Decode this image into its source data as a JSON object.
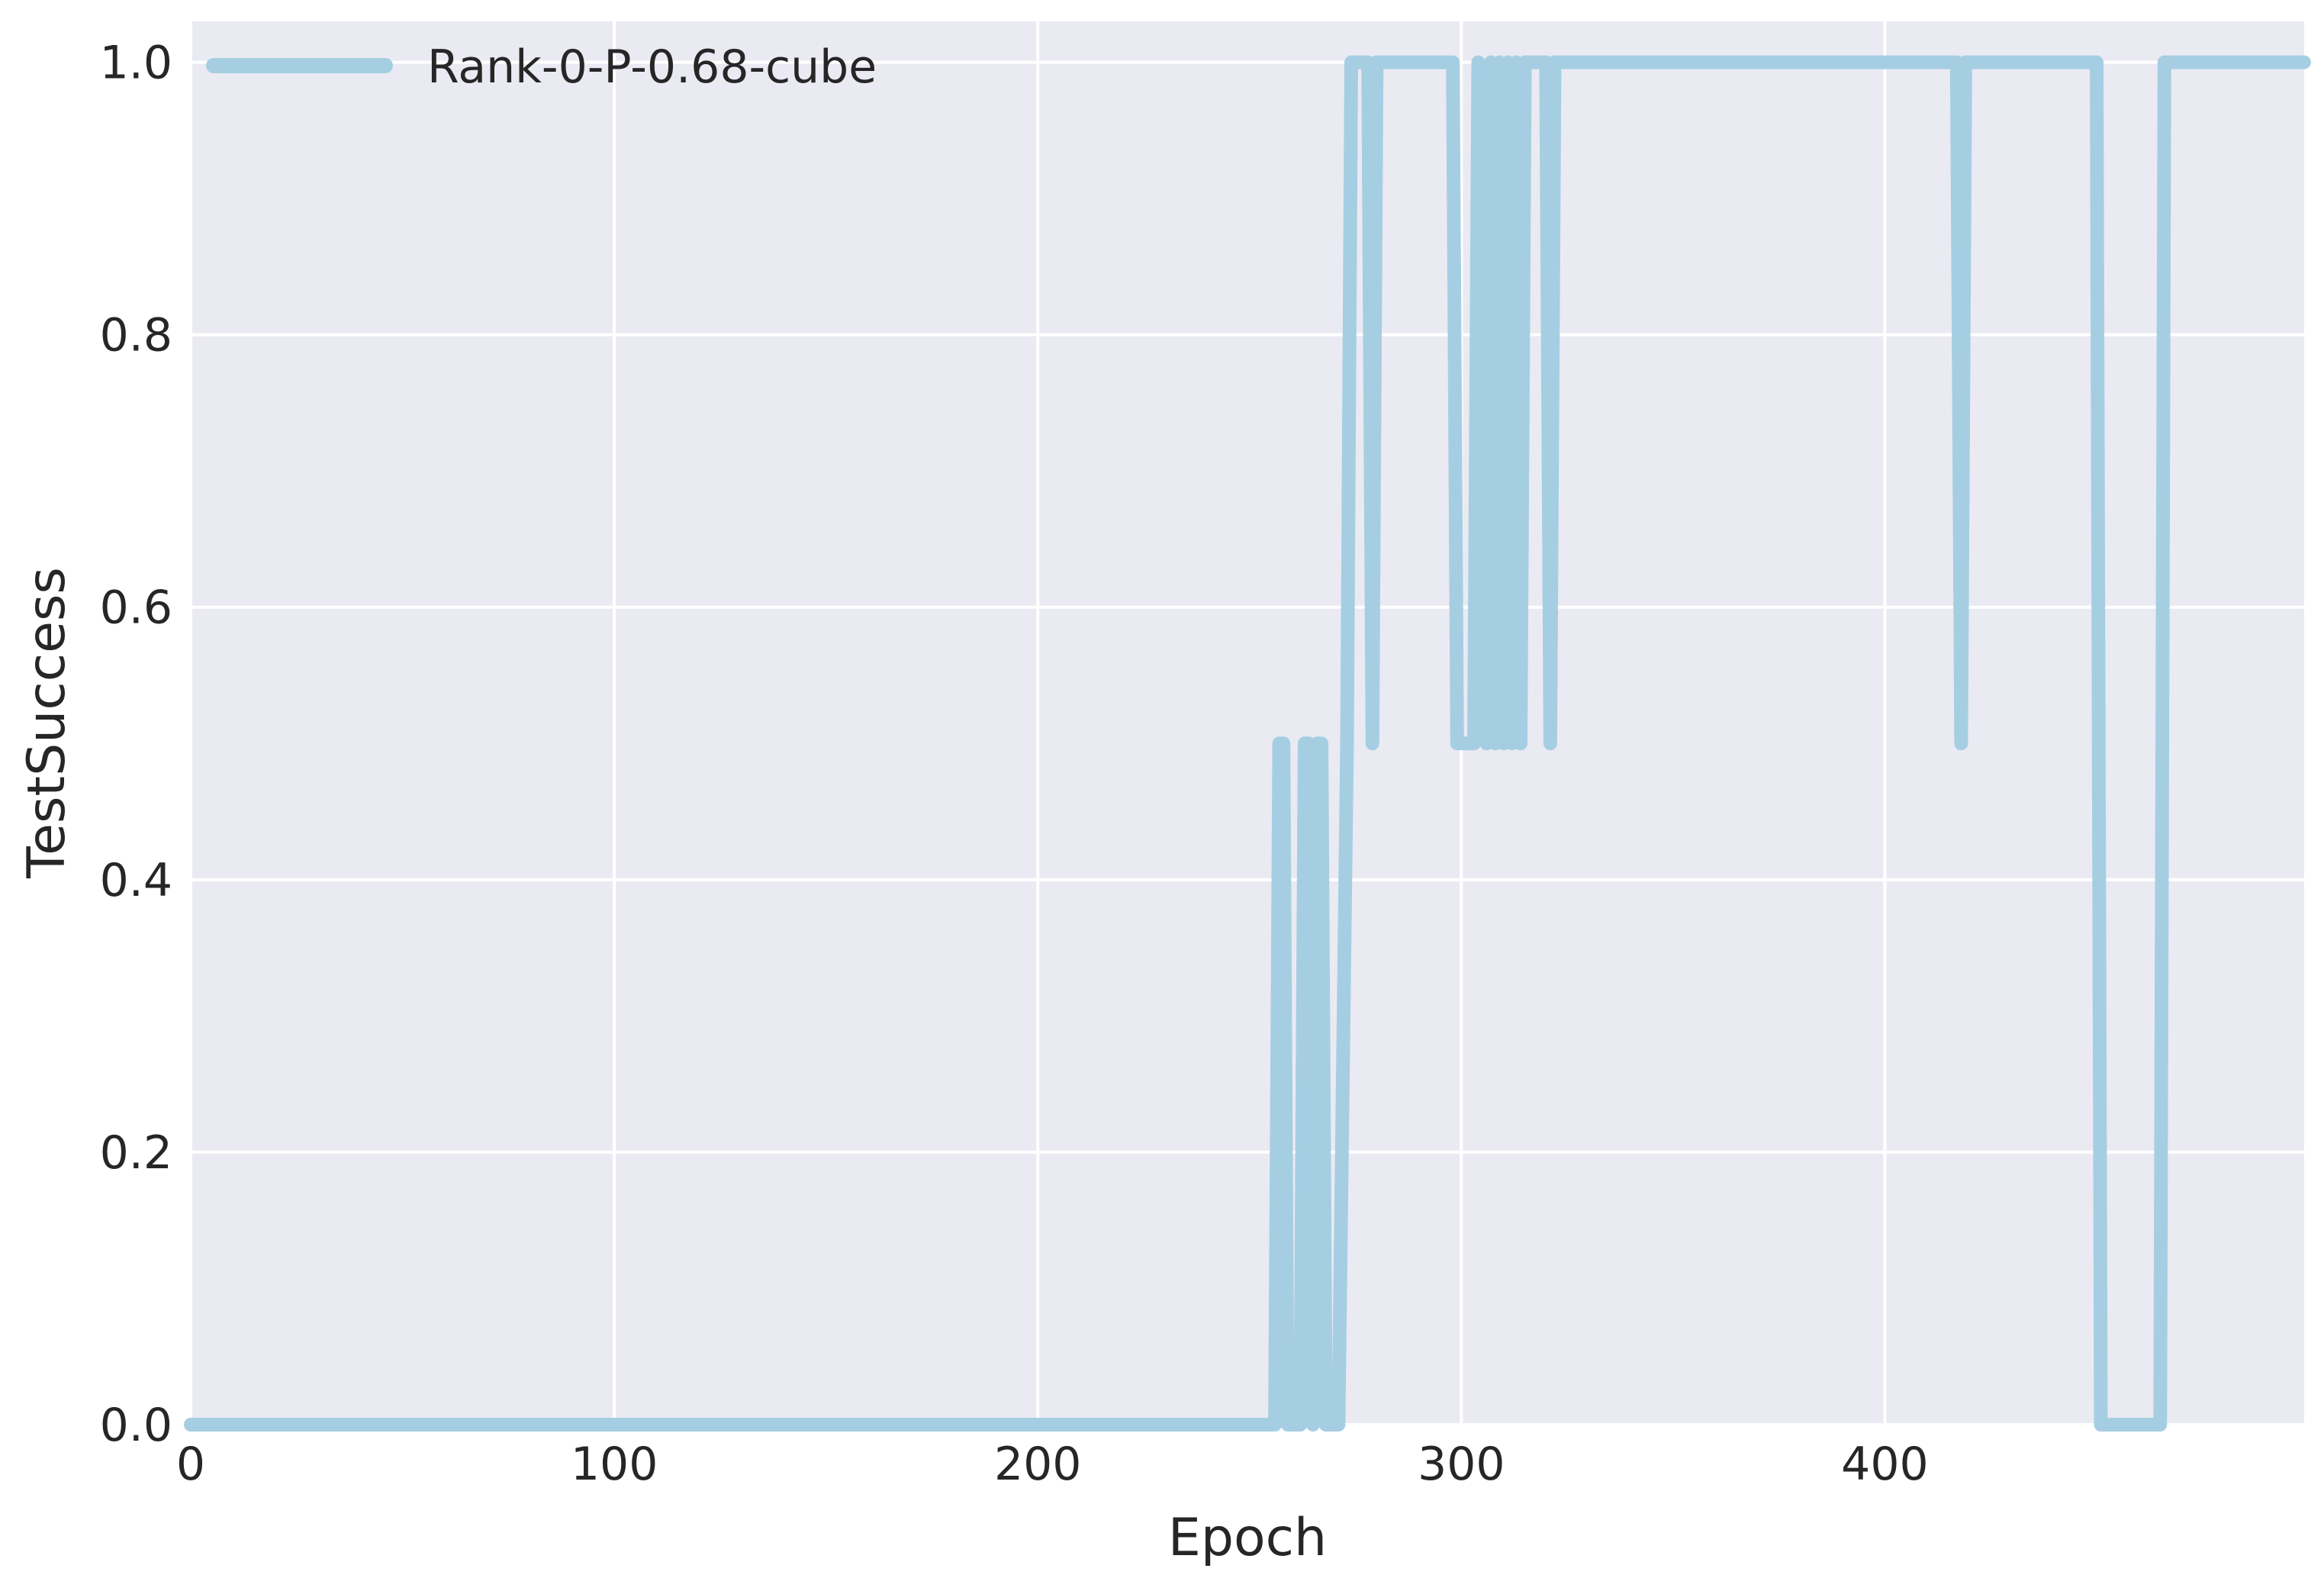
{
  "chart_data": {
    "type": "line",
    "title": "",
    "xlabel": "Epoch",
    "ylabel": "TestSuccess",
    "xlim": [
      0,
      499
    ],
    "ylim": [
      0.0,
      1.03
    ],
    "xticks": [
      0,
      100,
      200,
      300,
      400
    ],
    "yticks": [
      0.0,
      0.2,
      0.4,
      0.6,
      0.8,
      1.0
    ],
    "xtick_labels": [
      "0",
      "100",
      "200",
      "300",
      "400"
    ],
    "ytick_labels": [
      "0.0",
      "0.2",
      "0.4",
      "0.6",
      "0.8",
      "1.0"
    ],
    "grid": true,
    "legend_position": "top-left",
    "colors": {
      "background": "#eaeaf2",
      "grid": "#ffffff",
      "series": "#a6cee3"
    },
    "series": [
      {
        "name": "Rank-0-P-0.68-cube",
        "points": [
          [
            0,
            0.0
          ],
          [
            256,
            0.0
          ],
          [
            257,
            0.5
          ],
          [
            258,
            0.5
          ],
          [
            259,
            0.0
          ],
          [
            262,
            0.0
          ],
          [
            263,
            0.5
          ],
          [
            264,
            0.5
          ],
          [
            265,
            0.0
          ],
          [
            266,
            0.5
          ],
          [
            267,
            0.5
          ],
          [
            268,
            0.0
          ],
          [
            271,
            0.0
          ],
          [
            273,
            0.5
          ],
          [
            274,
            1.0
          ],
          [
            278,
            1.0
          ],
          [
            279,
            0.5
          ],
          [
            280,
            1.0
          ],
          [
            282,
            1.0
          ],
          [
            283,
            1.0
          ],
          [
            298,
            1.0
          ],
          [
            299,
            0.5
          ],
          [
            303,
            0.5
          ],
          [
            304,
            1.0
          ],
          [
            306,
            0.5
          ],
          [
            307,
            1.0
          ],
          [
            308,
            0.5
          ],
          [
            309,
            1.0
          ],
          [
            310,
            0.5
          ],
          [
            311,
            1.0
          ],
          [
            312,
            0.5
          ],
          [
            313,
            1.0
          ],
          [
            314,
            0.5
          ],
          [
            315,
            1.0
          ],
          [
            317,
            1.0
          ],
          [
            318,
            1.0
          ],
          [
            320,
            1.0
          ],
          [
            321,
            0.5
          ],
          [
            322,
            1.0
          ],
          [
            417,
            1.0
          ],
          [
            418,
            0.5
          ],
          [
            419,
            1.0
          ],
          [
            450,
            1.0
          ],
          [
            451,
            0.0
          ],
          [
            465,
            0.0
          ],
          [
            466,
            1.0
          ],
          [
            499,
            1.0
          ]
        ]
      }
    ]
  }
}
